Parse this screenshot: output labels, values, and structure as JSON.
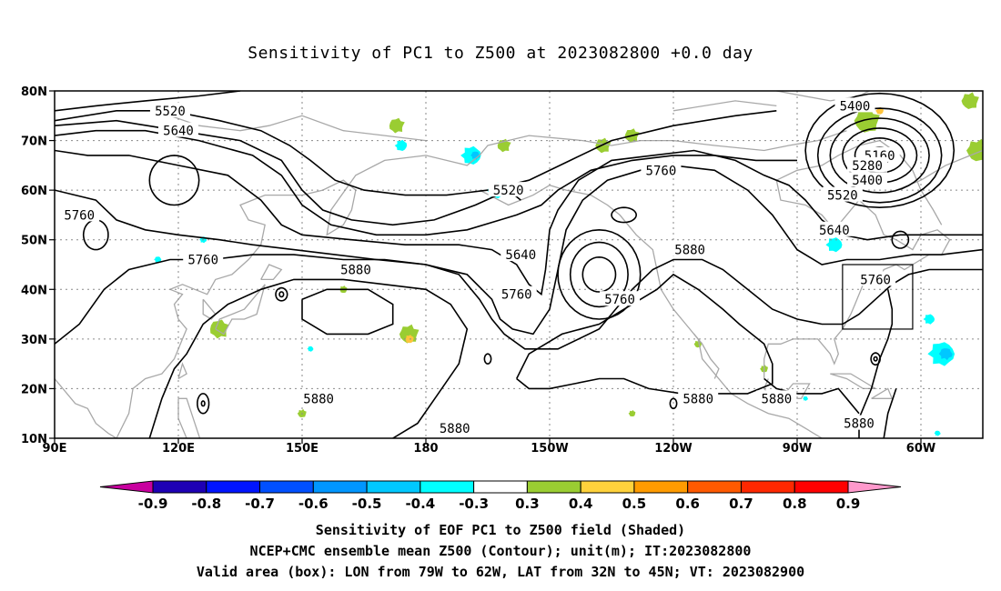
{
  "title": "Sensitivity of PC1 to Z500 at 2023082800 +0.0 day",
  "map": {
    "lon_labels": [
      {
        "lon": 90,
        "text": "90E"
      },
      {
        "lon": 120,
        "text": "120E"
      },
      {
        "lon": 150,
        "text": "150E"
      },
      {
        "lon": 180,
        "text": "180"
      },
      {
        "lon": 210,
        "text": "150W"
      },
      {
        "lon": 240,
        "text": "120W"
      },
      {
        "lon": 270,
        "text": "90W"
      },
      {
        "lon": 300,
        "text": "60W"
      }
    ],
    "lat_labels": [
      {
        "lat": 80,
        "text": "80N"
      },
      {
        "lat": 70,
        "text": "70N"
      },
      {
        "lat": 60,
        "text": "60N"
      },
      {
        "lat": 50,
        "text": "50N"
      },
      {
        "lat": 40,
        "text": "40N"
      },
      {
        "lat": 30,
        "text": "30N"
      },
      {
        "lat": 20,
        "text": "20N"
      },
      {
        "lat": 10,
        "text": "10N"
      }
    ],
    "extent": {
      "lon_min": 90,
      "lon_max": 315,
      "lat_min": 10,
      "lat_max": 80
    },
    "valid_box": {
      "lon_min": 281,
      "lon_max": 298,
      "lat_min": 32,
      "lat_max": 45
    },
    "contour_labels": [
      {
        "text": "5520",
        "lon": 118,
        "lat": 76
      },
      {
        "text": "5640",
        "lon": 120,
        "lat": 72
      },
      {
        "text": "5760",
        "lon": 96,
        "lat": 55
      },
      {
        "text": "5760",
        "lon": 126,
        "lat": 46
      },
      {
        "text": "5880",
        "lon": 163,
        "lat": 44
      },
      {
        "text": "5520",
        "lon": 200,
        "lat": 60
      },
      {
        "text": "5640",
        "lon": 203,
        "lat": 47
      },
      {
        "text": "5760",
        "lon": 202,
        "lat": 39
      },
      {
        "text": "5760",
        "lon": 227,
        "lat": 38
      },
      {
        "text": "5880",
        "lon": 244,
        "lat": 48
      },
      {
        "text": "5760",
        "lon": 237,
        "lat": 64
      },
      {
        "text": "5880",
        "lon": 154,
        "lat": 18
      },
      {
        "text": "5880",
        "lon": 187,
        "lat": 12
      },
      {
        "text": "5880",
        "lon": 246,
        "lat": 18
      },
      {
        "text": "5880",
        "lon": 265,
        "lat": 18
      },
      {
        "text": "5880",
        "lon": 285,
        "lat": 13
      },
      {
        "text": "5400",
        "lon": 284,
        "lat": 77
      },
      {
        "text": "5160",
        "lon": 290,
        "lat": 67
      },
      {
        "text": "5280",
        "lon": 287,
        "lat": 65
      },
      {
        "text": "5400",
        "lon": 287,
        "lat": 62
      },
      {
        "text": "5520",
        "lon": 281,
        "lat": 59
      },
      {
        "text": "5640",
        "lon": 279,
        "lat": 52
      },
      {
        "text": "5760",
        "lon": 289,
        "lat": 42
      }
    ],
    "colors": {
      "coast": "#a8a8a8",
      "contour": "#000000",
      "grid": "#8a8a8a",
      "positive_0.3": "#9acd32",
      "positive_0.4": "#ffc43c",
      "negative_0.3": "#00ffff",
      "negative_0.4": "#00c8ff"
    }
  },
  "colorbar": {
    "ticks": [
      "-0.9",
      "-0.8",
      "-0.7",
      "-0.6",
      "-0.5",
      "-0.4",
      "-0.3",
      "0.3",
      "0.4",
      "0.5",
      "0.6",
      "0.7",
      "0.8",
      "0.9"
    ],
    "colors": [
      "#c8009f",
      "#1e00b4",
      "#0014ff",
      "#0050ff",
      "#0096ff",
      "#00c8ff",
      "#00ffff",
      "#ffffff",
      "#9acd32",
      "#ffd23c",
      "#ff9b00",
      "#ff5a00",
      "#ff2800",
      "#ff0000",
      "#ff99cc"
    ]
  },
  "captions": [
    "Sensitivity of EOF PC1 to Z500 field (Shaded)",
    "NCEP+CMC ensemble mean Z500 (Contour); unit(m); IT:2023082800",
    "Valid area (box): LON from 79W to 62W, LAT from 32N to 45N; VT: 2023082900"
  ]
}
